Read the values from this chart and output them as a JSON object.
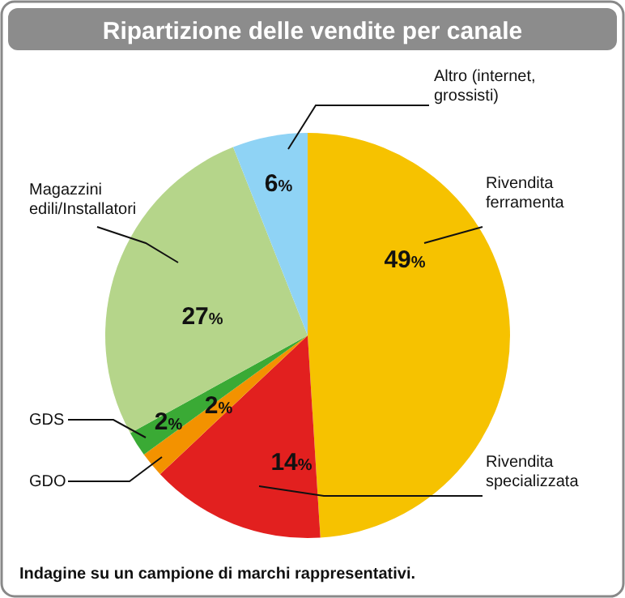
{
  "chart_data": {
    "type": "pie",
    "title": "Ripartizione delle vendite per canale",
    "categories": [
      "Rivendita ferramenta",
      "Rivendita specializzata",
      "GDO",
      "GDS",
      "Magazzini edili/Installatori",
      "Altro (internet, grossisti)"
    ],
    "values": [
      49,
      14,
      2,
      2,
      27,
      6
    ],
    "value_labels": [
      "49%",
      "14%",
      "2%",
      "2%",
      "27%",
      "6%"
    ],
    "colors": [
      "#f6c200",
      "#e2201f",
      "#f39200",
      "#3aaa35",
      "#b5d58a",
      "#8fd3f5"
    ],
    "annotations": [
      "Indagine su un campione di marchi rappresentativi."
    ]
  }
}
